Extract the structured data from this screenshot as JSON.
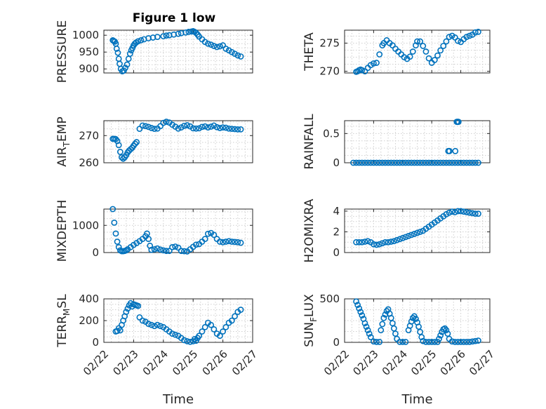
{
  "figure": {
    "title": "Figure 1 low",
    "marker_color": "#0072BD"
  },
  "chart_data": [
    {
      "type": "scatter",
      "id": "pressure",
      "title": "Figure 1 low",
      "ylabel": "PRESSURE",
      "xlabel": "",
      "xlim": [
        0,
        5
      ],
      "ylim": [
        888,
        1015
      ],
      "yticks": [
        900,
        950,
        1000
      ],
      "xticks": [],
      "grid": true,
      "x": [
        0.3,
        0.33,
        0.37,
        0.4,
        0.43,
        0.47,
        0.5,
        0.53,
        0.57,
        0.62,
        0.67,
        0.72,
        0.78,
        0.83,
        0.88,
        0.92,
        0.96,
        1.0,
        1.04,
        1.08,
        1.15,
        1.25,
        1.35,
        1.5,
        1.65,
        1.8,
        2.0,
        2.1,
        2.2,
        2.35,
        2.5,
        2.6,
        2.75,
        2.85,
        2.95,
        3.0,
        3.05,
        3.1,
        3.15,
        3.2,
        3.3,
        3.4,
        3.5,
        3.6,
        3.7,
        3.8,
        3.9,
        4.0,
        4.1,
        4.2,
        4.3,
        4.4,
        4.5,
        4.6
      ],
      "y": [
        985,
        983,
        981,
        975,
        960,
        948,
        930,
        915,
        900,
        893,
        895,
        903,
        913,
        930,
        945,
        955,
        962,
        970,
        975,
        978,
        982,
        985,
        988,
        991,
        993,
        995,
        997,
        999,
        1000,
        1002,
        1004,
        1006,
        1008,
        1010,
        1011,
        1012,
        1010,
        1007,
        1002,
        996,
        988,
        980,
        975,
        972,
        968,
        965,
        967,
        970,
        960,
        955,
        950,
        945,
        940,
        937
      ]
    },
    {
      "type": "scatter",
      "id": "theta",
      "ylabel": "THETA",
      "xlabel": "",
      "xlim": [
        0,
        5
      ],
      "ylim": [
        269.7,
        277.3
      ],
      "yticks": [
        270,
        275
      ],
      "xticks": [],
      "grid": true,
      "x": [
        0.4,
        0.45,
        0.5,
        0.55,
        0.6,
        0.7,
        0.8,
        0.9,
        1.0,
        1.1,
        1.2,
        1.3,
        1.35,
        1.45,
        1.55,
        1.65,
        1.75,
        1.85,
        1.95,
        2.05,
        2.15,
        2.25,
        2.35,
        2.45,
        2.5,
        2.6,
        2.7,
        2.8,
        2.9,
        3.0,
        3.1,
        3.2,
        3.3,
        3.4,
        3.5,
        3.6,
        3.7,
        3.8,
        3.9,
        4.0,
        4.1,
        4.2,
        4.3,
        4.4,
        4.5,
        4.6
      ],
      "y": [
        269.9,
        270.0,
        270.2,
        270.3,
        270.2,
        270.0,
        270.6,
        271.1,
        271.4,
        271.5,
        273.0,
        274.6,
        275.0,
        275.5,
        275.0,
        274.6,
        274.0,
        273.5,
        273.0,
        272.5,
        272.2,
        272.6,
        273.5,
        274.6,
        275.3,
        275.3,
        274.5,
        273.5,
        272.3,
        271.5,
        272.0,
        272.8,
        273.7,
        274.5,
        275.3,
        276.1,
        276.3,
        276.0,
        275.4,
        275.2,
        275.7,
        276.1,
        276.3,
        276.5,
        276.9,
        277.0
      ]
    },
    {
      "type": "scatter",
      "id": "air_temp",
      "ylabel": "AIR_TEMP",
      "ylabel_main": "AIR",
      "ylabel_sub": "T",
      "ylabel_rest": "EMP",
      "xlabel": "",
      "xlim": [
        0,
        5
      ],
      "ylim": [
        260,
        275.5
      ],
      "yticks": [
        260,
        270
      ],
      "xticks": [],
      "grid": true,
      "x": [
        0.3,
        0.35,
        0.4,
        0.45,
        0.5,
        0.55,
        0.6,
        0.65,
        0.7,
        0.75,
        0.8,
        0.85,
        0.9,
        0.95,
        1.0,
        1.05,
        1.1,
        1.2,
        1.3,
        1.4,
        1.5,
        1.6,
        1.7,
        1.8,
        1.9,
        2.0,
        2.1,
        2.2,
        2.3,
        2.4,
        2.5,
        2.6,
        2.7,
        2.8,
        2.9,
        3.0,
        3.1,
        3.2,
        3.3,
        3.4,
        3.5,
        3.6,
        3.7,
        3.8,
        3.9,
        4.0,
        4.1,
        4.2,
        4.3,
        4.4,
        4.5,
        4.6
      ],
      "y": [
        268.8,
        268.8,
        268.7,
        268.0,
        266.5,
        264.0,
        262.0,
        261.5,
        262.0,
        262.8,
        263.8,
        264.5,
        265.0,
        265.5,
        266.3,
        267.0,
        267.6,
        272.5,
        273.7,
        273.5,
        273.2,
        272.8,
        272.5,
        272.6,
        273.5,
        274.7,
        275.1,
        274.8,
        274.0,
        273.3,
        272.6,
        273.0,
        273.6,
        273.8,
        273.4,
        272.7,
        272.6,
        272.7,
        273.2,
        273.4,
        273.0,
        273.3,
        273.7,
        273.1,
        272.8,
        273.0,
        272.9,
        272.6,
        272.5,
        272.4,
        272.3,
        272.3
      ]
    },
    {
      "type": "scatter",
      "id": "rainfall",
      "ylabel": "RAINFALL",
      "xlabel": "",
      "xlim": [
        0,
        5
      ],
      "ylim": [
        0,
        0.72
      ],
      "yticks": [
        0,
        0.5
      ],
      "ytick_labels": [
        "0",
        "0.5"
      ],
      "xticks": [],
      "grid": true,
      "x": [
        0.3,
        0.4,
        0.5,
        0.6,
        0.7,
        0.8,
        0.9,
        1.0,
        1.1,
        1.2,
        1.3,
        1.4,
        1.5,
        1.6,
        1.7,
        1.8,
        1.9,
        2.0,
        2.1,
        2.2,
        2.3,
        2.4,
        2.5,
        2.6,
        2.7,
        2.8,
        2.9,
        3.0,
        3.1,
        3.2,
        3.3,
        3.4,
        3.5,
        3.6,
        3.7,
        3.8,
        3.9,
        4.0,
        4.1,
        4.2,
        4.3,
        4.4,
        4.5,
        4.6,
        3.57,
        3.61,
        3.81,
        3.86,
        3.88,
        3.9,
        3.92
      ],
      "y": [
        0,
        0,
        0,
        0,
        0,
        0,
        0,
        0,
        0,
        0,
        0,
        0,
        0,
        0,
        0,
        0,
        0,
        0,
        0,
        0,
        0,
        0,
        0,
        0,
        0,
        0,
        0,
        0,
        0,
        0,
        0,
        0,
        0,
        0,
        0,
        0,
        0,
        0,
        0,
        0,
        0,
        0,
        0,
        0,
        0.2,
        0.2,
        0.2,
        0.7,
        0.7,
        0.7,
        0.7
      ]
    },
    {
      "type": "scatter",
      "id": "mixdepth",
      "ylabel": "MIXDEPTH",
      "xlabel": "",
      "xlim": [
        0,
        5
      ],
      "ylim": [
        0,
        1600
      ],
      "yticks": [
        0,
        1000
      ],
      "xticks": [],
      "grid": true,
      "x": [
        0.3,
        0.35,
        0.4,
        0.45,
        0.5,
        0.55,
        0.6,
        0.65,
        0.7,
        0.75,
        0.8,
        0.9,
        1.0,
        1.1,
        1.2,
        1.3,
        1.4,
        1.45,
        1.5,
        1.55,
        1.6,
        1.7,
        1.8,
        1.9,
        2.0,
        2.1,
        2.2,
        2.3,
        2.4,
        2.5,
        2.6,
        2.7,
        2.8,
        2.9,
        3.0,
        3.1,
        3.2,
        3.3,
        3.4,
        3.5,
        3.6,
        3.7,
        3.8,
        3.9,
        4.0,
        4.1,
        4.2,
        4.3,
        4.4,
        4.5,
        4.6
      ],
      "y": [
        1600,
        1100,
        700,
        400,
        200,
        80,
        50,
        50,
        60,
        80,
        120,
        200,
        280,
        350,
        420,
        500,
        600,
        700,
        500,
        250,
        100,
        120,
        150,
        110,
        80,
        60,
        60,
        200,
        220,
        180,
        60,
        50,
        40,
        120,
        210,
        290,
        310,
        400,
        500,
        690,
        720,
        650,
        500,
        400,
        380,
        400,
        420,
        400,
        390,
        380,
        360
      ]
    },
    {
      "type": "scatter",
      "id": "h2omixra",
      "ylabel": "H2OMIXRA",
      "xlabel": "",
      "xlim": [
        0,
        5
      ],
      "ylim": [
        0,
        4.2
      ],
      "yticks": [
        0,
        2,
        4
      ],
      "xticks": [],
      "grid": true,
      "x": [
        0.4,
        0.5,
        0.6,
        0.7,
        0.8,
        0.9,
        1.0,
        1.1,
        1.2,
        1.3,
        1.4,
        1.5,
        1.6,
        1.7,
        1.8,
        1.9,
        2.0,
        2.1,
        2.2,
        2.3,
        2.4,
        2.5,
        2.6,
        2.7,
        2.8,
        2.9,
        3.0,
        3.1,
        3.2,
        3.3,
        3.4,
        3.5,
        3.6,
        3.7,
        3.8,
        3.9,
        4.0,
        4.1,
        4.2,
        4.3,
        4.4,
        4.5,
        4.6
      ],
      "y": [
        1.0,
        1.0,
        1.0,
        1.05,
        1.1,
        1.0,
        0.8,
        0.75,
        0.8,
        0.9,
        1.0,
        1.0,
        1.05,
        1.1,
        1.2,
        1.3,
        1.4,
        1.5,
        1.6,
        1.7,
        1.8,
        1.9,
        2.0,
        2.1,
        2.3,
        2.5,
        2.7,
        2.9,
        3.1,
        3.3,
        3.5,
        3.7,
        3.85,
        3.95,
        3.9,
        4.0,
        4.0,
        3.95,
        3.9,
        3.85,
        3.8,
        3.75,
        3.75
      ]
    },
    {
      "type": "scatter",
      "id": "terr_msl",
      "ylabel": "TERR_MSL",
      "ylabel_main": "TERR",
      "ylabel_sub": "M",
      "ylabel_rest": "SL",
      "xlabel": "Time",
      "xlim": [
        0,
        5
      ],
      "ylim": [
        0,
        400
      ],
      "yticks": [
        0,
        200,
        400
      ],
      "xticks": [
        0,
        1,
        2,
        3,
        4,
        5
      ],
      "xtick_labels": [
        "02/22",
        "02/23",
        "02/24",
        "02/25",
        "02/26",
        "02/27"
      ],
      "grid": true,
      "x": [
        0.4,
        0.45,
        0.5,
        0.55,
        0.6,
        0.65,
        0.7,
        0.75,
        0.8,
        0.85,
        0.9,
        0.95,
        1.0,
        1.05,
        1.1,
        1.15,
        1.2,
        1.3,
        1.4,
        1.5,
        1.6,
        1.7,
        1.8,
        1.9,
        2.0,
        2.1,
        2.2,
        2.3,
        2.4,
        2.5,
        2.6,
        2.7,
        2.8,
        2.9,
        3.0,
        3.05,
        3.1,
        3.15,
        3.2,
        3.3,
        3.4,
        3.5,
        3.6,
        3.7,
        3.8,
        3.9,
        4.0,
        4.1,
        4.2,
        4.3,
        4.4,
        4.5,
        4.6
      ],
      "y": [
        100,
        105,
        130,
        110,
        160,
        200,
        240,
        280,
        310,
        340,
        360,
        330,
        350,
        345,
        340,
        335,
        230,
        200,
        190,
        170,
        160,
        150,
        160,
        150,
        140,
        120,
        100,
        80,
        70,
        60,
        40,
        20,
        10,
        5,
        10,
        30,
        15,
        40,
        60,
        100,
        140,
        180,
        160,
        120,
        80,
        60,
        100,
        140,
        180,
        200,
        240,
        280,
        300
      ]
    },
    {
      "type": "scatter",
      "id": "sun_flux",
      "ylabel": "SUN_FLUX",
      "ylabel_main": "SUN",
      "ylabel_sub": "F",
      "ylabel_rest": "LUX",
      "xlabel": "Time",
      "xlim": [
        0,
        5
      ],
      "ylim": [
        0,
        500
      ],
      "yticks": [
        0,
        500
      ],
      "xticks": [
        0,
        1,
        2,
        3,
        4,
        5
      ],
      "xtick_labels": [
        "02/22",
        "02/23",
        "02/24",
        "02/25",
        "02/26",
        "02/27"
      ],
      "grid": true,
      "x": [
        0.4,
        0.45,
        0.5,
        0.55,
        0.6,
        0.65,
        0.7,
        0.75,
        0.8,
        0.85,
        0.9,
        1.0,
        1.1,
        1.2,
        1.25,
        1.3,
        1.35,
        1.4,
        1.45,
        1.5,
        1.55,
        1.6,
        1.65,
        1.7,
        1.75,
        1.8,
        1.9,
        2.0,
        2.1,
        2.2,
        2.25,
        2.3,
        2.35,
        2.4,
        2.45,
        2.5,
        2.55,
        2.6,
        2.65,
        2.7,
        2.8,
        2.9,
        3.0,
        3.1,
        3.2,
        3.25,
        3.3,
        3.35,
        3.4,
        3.45,
        3.5,
        3.55,
        3.6,
        3.7,
        3.8,
        3.9,
        4.0,
        4.1,
        4.2,
        4.3,
        4.4,
        4.5,
        4.6
      ],
      "y": [
        470,
        430,
        390,
        350,
        310,
        270,
        220,
        180,
        140,
        100,
        60,
        10,
        5,
        5,
        140,
        210,
        280,
        320,
        360,
        380,
        330,
        280,
        220,
        160,
        100,
        40,
        5,
        5,
        5,
        140,
        190,
        240,
        280,
        300,
        270,
        230,
        180,
        120,
        60,
        15,
        5,
        5,
        5,
        5,
        5,
        40,
        80,
        120,
        150,
        160,
        140,
        100,
        40,
        10,
        5,
        5,
        5,
        5,
        5,
        5,
        10,
        15,
        20
      ]
    }
  ]
}
